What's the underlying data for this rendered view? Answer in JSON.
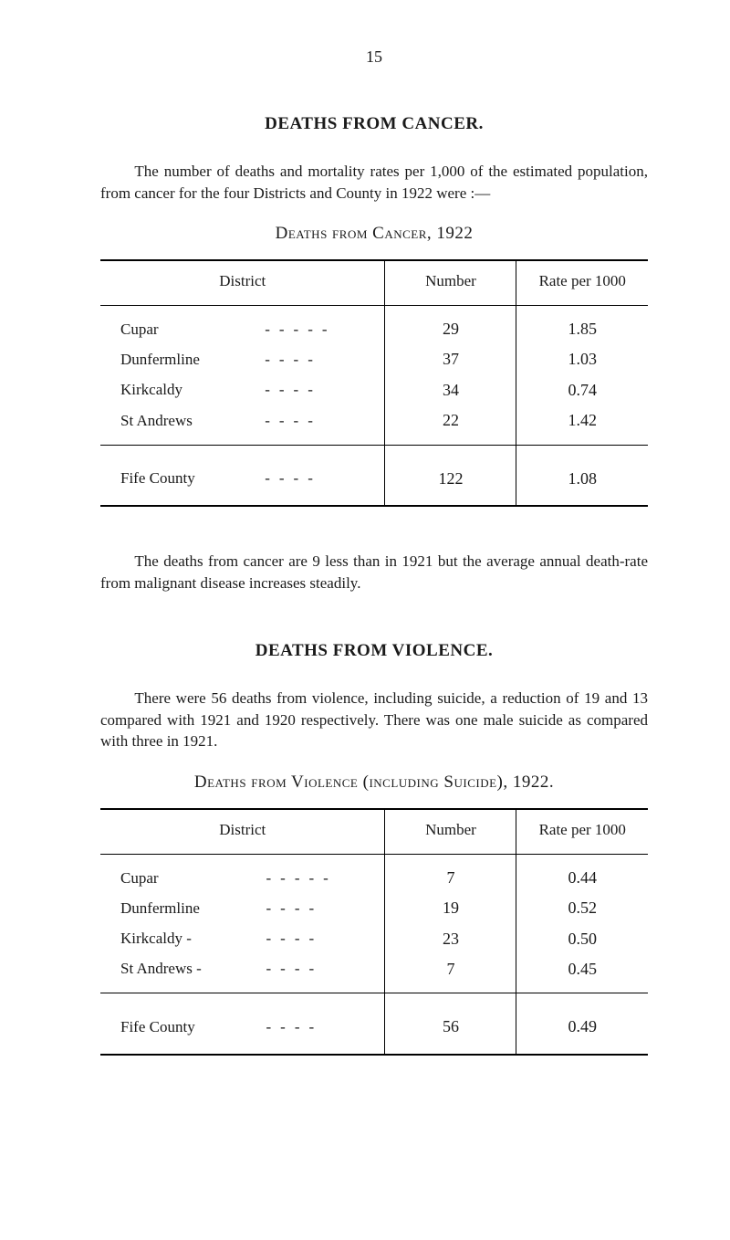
{
  "page_number": "15",
  "section1": {
    "title": "DEATHS FROM CANCER.",
    "paragraph": "The number of deaths and mortality rates per 1,000 of the estimated population, from cancer for the four Districts and County in 1922 were :—",
    "table_caption": "Deaths from Cancer, 1922",
    "closing_paragraph": "The deaths from cancer are 9 less than in 1921 but the average annual death-rate from malignant disease increases steadily."
  },
  "section2": {
    "title": "DEATHS FROM VIOLENCE.",
    "paragraph": "There were 56 deaths from violence, including suicide, a reduction of 19 and 13 compared with 1921 and 1920 respectively. There was one male suicide as compared with three in 1921.",
    "table_caption": "Deaths from Violence (including Suicide), 1922."
  },
  "table1": {
    "columns": {
      "district": "District",
      "number": "Number",
      "rate": "Rate per 1000"
    },
    "rows": [
      {
        "label": "Cupar",
        "dashes": "-----",
        "number": "29",
        "rate": "1.85"
      },
      {
        "label": "Dunfermline",
        "dashes": "----",
        "number": "37",
        "rate": "1.03"
      },
      {
        "label": "Kirkcaldy",
        "dashes": "----",
        "number": "34",
        "rate": "0.74"
      },
      {
        "label": "St Andrews",
        "dashes": "----",
        "number": "22",
        "rate": "1.42"
      }
    ],
    "total": {
      "label": "Fife County",
      "dashes": "----",
      "number": "122",
      "rate": "1.08"
    }
  },
  "table2": {
    "columns": {
      "district": "District",
      "number": "Number",
      "rate": "Rate per 1000"
    },
    "rows": [
      {
        "label": "Cupar",
        "dashes": "-----",
        "number": "7",
        "rate": "0.44"
      },
      {
        "label": "Dunfermline",
        "dashes": "----",
        "number": "19",
        "rate": "0.52"
      },
      {
        "label": "Kirkcaldy  -",
        "dashes": "----",
        "number": "23",
        "rate": "0.50"
      },
      {
        "label": "St Andrews -",
        "dashes": "----",
        "number": "7",
        "rate": "0.45"
      }
    ],
    "total": {
      "label": "Fife County",
      "dashes": "----",
      "number": "56",
      "rate": "0.49"
    }
  },
  "colors": {
    "text": "#1a1a1a",
    "background": "#ffffff",
    "rule": "#000000"
  },
  "typography": {
    "body_font": "Georgia, Times New Roman, serif",
    "body_size_pt": 13,
    "title_size_pt": 14,
    "title_weight": "bold"
  }
}
